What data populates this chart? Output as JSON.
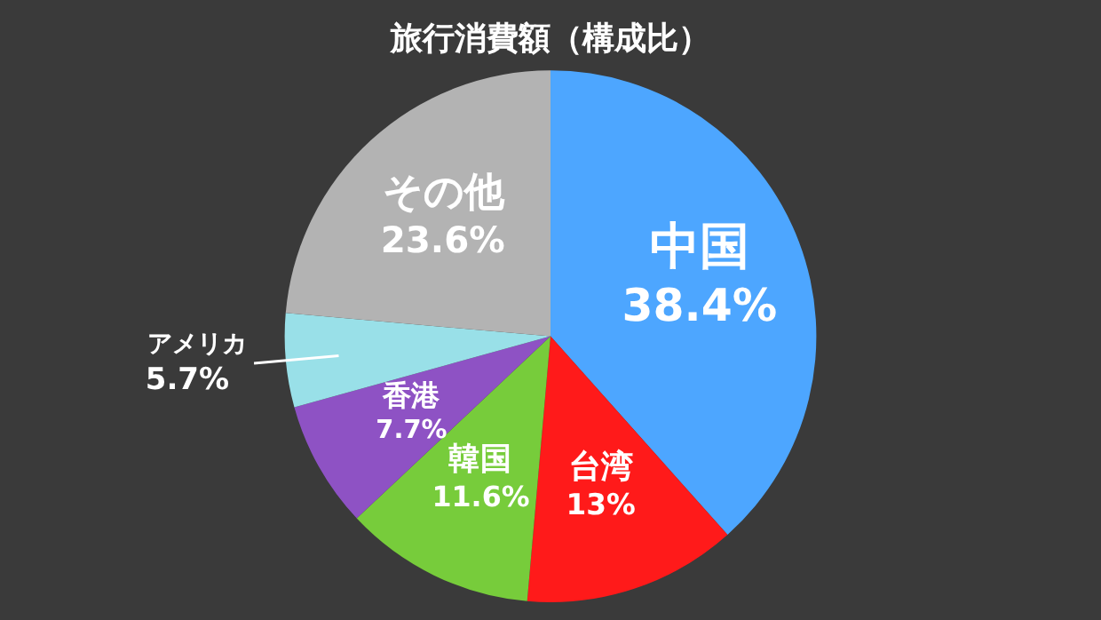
{
  "chart_data": {
    "type": "pie",
    "title": "旅行消費額（構成比）",
    "categories": [
      "中国",
      "台湾",
      "韓国",
      "香港",
      "アメリカ",
      "その他"
    ],
    "values": [
      38.4,
      13,
      11.6,
      7.7,
      5.7,
      23.6
    ],
    "colors": [
      "#4da6ff",
      "#ff1a1a",
      "#77cc3b",
      "#8e52c4",
      "#99e0e8",
      "#b3b3b3"
    ],
    "value_labels": [
      "38.4%",
      "13%",
      "11.6%",
      "7.7%",
      "5.7%",
      "23.6%"
    ],
    "legend": false
  }
}
